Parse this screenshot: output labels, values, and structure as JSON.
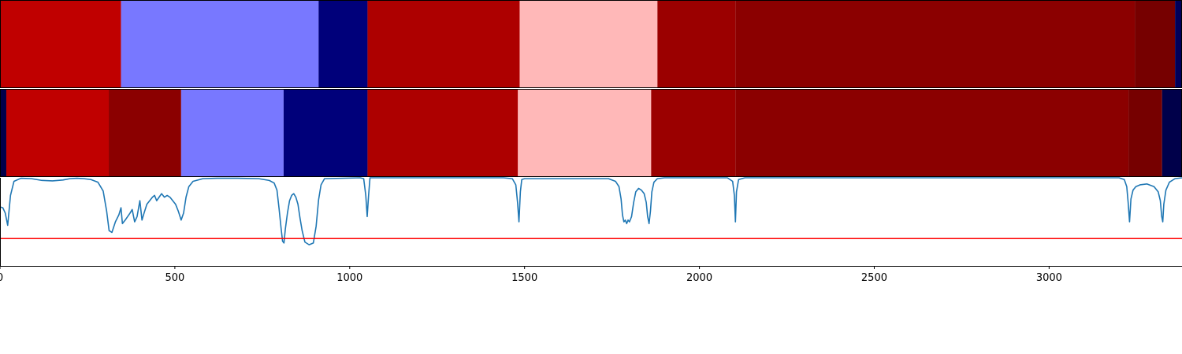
{
  "chart_data": [
    {
      "type": "heatmap",
      "segments": [
        {
          "start": 0,
          "end": 346,
          "color": "#c00000"
        },
        {
          "start": 346,
          "end": 911,
          "color": "#7878ff"
        },
        {
          "start": 911,
          "end": 1051,
          "color": "#00007a"
        },
        {
          "start": 1051,
          "end": 1486,
          "color": "#ad0000"
        },
        {
          "start": 1486,
          "end": 1880,
          "color": "#ffb8b8"
        },
        {
          "start": 1880,
          "end": 2103,
          "color": "#9b0000"
        },
        {
          "start": 2103,
          "end": 3245,
          "color": "#8b0000"
        },
        {
          "start": 3245,
          "end": 3360,
          "color": "#760000"
        },
        {
          "start": 3360,
          "end": 3380,
          "color": "#00005a"
        }
      ]
    },
    {
      "type": "heatmap",
      "segments": [
        {
          "start": 0,
          "end": 18,
          "color": "#00004a"
        },
        {
          "start": 18,
          "end": 311,
          "color": "#c00000"
        },
        {
          "start": 311,
          "end": 518,
          "color": "#8b0000"
        },
        {
          "start": 518,
          "end": 811,
          "color": "#7878ff"
        },
        {
          "start": 811,
          "end": 1051,
          "color": "#00007a"
        },
        {
          "start": 1051,
          "end": 1481,
          "color": "#ad0000"
        },
        {
          "start": 1481,
          "end": 1862,
          "color": "#ffb8b8"
        },
        {
          "start": 1862,
          "end": 2103,
          "color": "#9b0000"
        },
        {
          "start": 2103,
          "end": 3227,
          "color": "#8b0000"
        },
        {
          "start": 3227,
          "end": 3323,
          "color": "#760000"
        },
        {
          "start": 3323,
          "end": 3380,
          "color": "#00004a"
        }
      ]
    },
    {
      "type": "line",
      "xlim": [
        0,
        3380
      ],
      "ylim": [
        0,
        1
      ],
      "xticks": [
        0,
        500,
        1000,
        1500,
        2000,
        2500,
        3000
      ],
      "threshold": 0.31,
      "line_color": "#1f77b4",
      "threshold_color": "#ff0000",
      "series": [
        {
          "points": [
            [
              0,
              0.67
            ],
            [
              8,
              0.66
            ],
            [
              15,
              0.6
            ],
            [
              22,
              0.46
            ],
            [
              30,
              0.8
            ],
            [
              40,
              0.96
            ],
            [
              60,
              0.995
            ],
            [
              90,
              0.99
            ],
            [
              120,
              0.97
            ],
            [
              150,
              0.965
            ],
            [
              180,
              0.975
            ],
            [
              200,
              0.99
            ],
            [
              220,
              0.995
            ],
            [
              240,
              0.99
            ],
            [
              260,
              0.98
            ],
            [
              280,
              0.95
            ],
            [
              295,
              0.85
            ],
            [
              305,
              0.62
            ],
            [
              312,
              0.4
            ],
            [
              320,
              0.38
            ],
            [
              330,
              0.5
            ],
            [
              340,
              0.58
            ],
            [
              346,
              0.66
            ],
            [
              350,
              0.48
            ],
            [
              358,
              0.52
            ],
            [
              365,
              0.56
            ],
            [
              372,
              0.6
            ],
            [
              378,
              0.64
            ],
            [
              385,
              0.5
            ],
            [
              392,
              0.56
            ],
            [
              400,
              0.74
            ],
            [
              406,
              0.52
            ],
            [
              412,
              0.6
            ],
            [
              420,
              0.7
            ],
            [
              428,
              0.74
            ],
            [
              436,
              0.78
            ],
            [
              442,
              0.8
            ],
            [
              448,
              0.74
            ],
            [
              455,
              0.78
            ],
            [
              462,
              0.82
            ],
            [
              470,
              0.78
            ],
            [
              478,
              0.8
            ],
            [
              486,
              0.78
            ],
            [
              494,
              0.74
            ],
            [
              502,
              0.7
            ],
            [
              510,
              0.62
            ],
            [
              518,
              0.52
            ],
            [
              525,
              0.6
            ],
            [
              532,
              0.78
            ],
            [
              540,
              0.9
            ],
            [
              552,
              0.96
            ],
            [
              580,
              0.99
            ],
            [
              620,
              0.995
            ],
            [
              680,
              0.995
            ],
            [
              740,
              0.99
            ],
            [
              770,
              0.97
            ],
            [
              784,
              0.94
            ],
            [
              792,
              0.86
            ],
            [
              798,
              0.65
            ],
            [
              804,
              0.42
            ],
            [
              808,
              0.28
            ],
            [
              812,
              0.26
            ],
            [
              816,
              0.42
            ],
            [
              822,
              0.6
            ],
            [
              828,
              0.74
            ],
            [
              834,
              0.8
            ],
            [
              840,
              0.82
            ],
            [
              846,
              0.78
            ],
            [
              852,
              0.7
            ],
            [
              858,
              0.54
            ],
            [
              864,
              0.4
            ],
            [
              872,
              0.27
            ],
            [
              884,
              0.24
            ],
            [
              896,
              0.26
            ],
            [
              904,
              0.45
            ],
            [
              911,
              0.75
            ],
            [
              918,
              0.92
            ],
            [
              928,
              0.99
            ],
            [
              1030,
              1.0
            ],
            [
              1040,
              0.99
            ],
            [
              1046,
              0.8
            ],
            [
              1050,
              0.56
            ],
            [
              1054,
              0.8
            ],
            [
              1058,
              1.0
            ],
            [
              1440,
              1.0
            ],
            [
              1465,
              0.99
            ],
            [
              1475,
              0.92
            ],
            [
              1480,
              0.72
            ],
            [
              1484,
              0.5
            ],
            [
              1488,
              0.84
            ],
            [
              1492,
              0.98
            ],
            [
              1500,
              0.99
            ],
            [
              1740,
              0.99
            ],
            [
              1760,
              0.96
            ],
            [
              1770,
              0.9
            ],
            [
              1776,
              0.76
            ],
            [
              1780,
              0.58
            ],
            [
              1784,
              0.5
            ],
            [
              1788,
              0.52
            ],
            [
              1792,
              0.48
            ],
            [
              1796,
              0.52
            ],
            [
              1800,
              0.5
            ],
            [
              1806,
              0.56
            ],
            [
              1812,
              0.72
            ],
            [
              1818,
              0.84
            ],
            [
              1826,
              0.88
            ],
            [
              1834,
              0.86
            ],
            [
              1842,
              0.82
            ],
            [
              1848,
              0.72
            ],
            [
              1852,
              0.56
            ],
            [
              1856,
              0.48
            ],
            [
              1860,
              0.62
            ],
            [
              1864,
              0.84
            ],
            [
              1870,
              0.95
            ],
            [
              1880,
              0.99
            ],
            [
              1900,
              1.0
            ],
            [
              2080,
              1.0
            ],
            [
              2095,
              0.96
            ],
            [
              2100,
              0.8
            ],
            [
              2103,
              0.5
            ],
            [
              2106,
              0.84
            ],
            [
              2112,
              0.98
            ],
            [
              2130,
              1.0
            ],
            [
              3200,
              1.0
            ],
            [
              3215,
              0.98
            ],
            [
              3222,
              0.9
            ],
            [
              3226,
              0.72
            ],
            [
              3230,
              0.5
            ],
            [
              3234,
              0.76
            ],
            [
              3240,
              0.86
            ],
            [
              3248,
              0.9
            ],
            [
              3260,
              0.92
            ],
            [
              3280,
              0.93
            ],
            [
              3300,
              0.9
            ],
            [
              3312,
              0.84
            ],
            [
              3318,
              0.74
            ],
            [
              3322,
              0.56
            ],
            [
              3325,
              0.5
            ],
            [
              3328,
              0.7
            ],
            [
              3334,
              0.86
            ],
            [
              3344,
              0.95
            ],
            [
              3360,
              0.99
            ],
            [
              3380,
              1.0
            ]
          ]
        }
      ]
    }
  ]
}
